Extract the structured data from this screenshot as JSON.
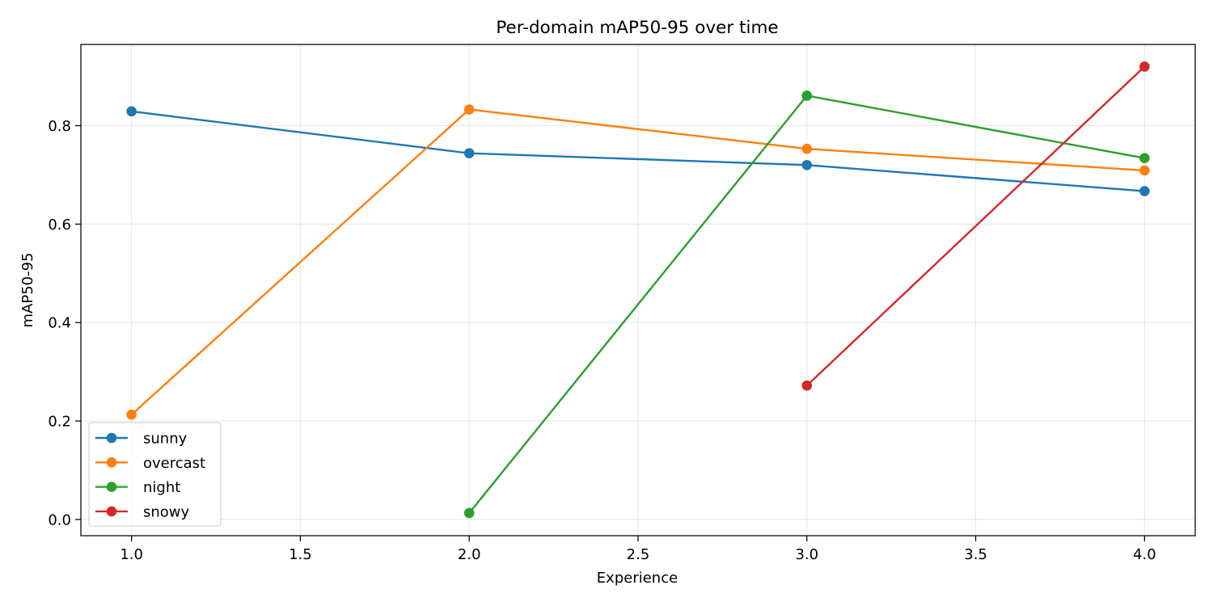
{
  "chart_data": {
    "type": "line",
    "title": "Per-domain mAP50-95 over time",
    "xlabel": "Experience",
    "ylabel": "mAP50-95",
    "xlim": [
      0.85,
      4.15
    ],
    "ylim": [
      -0.033,
      0.965
    ],
    "xticks": [
      "1.0",
      "1.5",
      "2.0",
      "2.5",
      "3.0",
      "3.5",
      "4.0"
    ],
    "yticks": [
      "0.0",
      "0.2",
      "0.4",
      "0.6",
      "0.8"
    ],
    "grid": true,
    "legend_position": "lower-left",
    "series": [
      {
        "name": "sunny",
        "color": "#1f77b4",
        "x": [
          1,
          2,
          3,
          4
        ],
        "y": [
          0.829,
          0.744,
          0.72,
          0.667
        ]
      },
      {
        "name": "overcast",
        "color": "#ff7f0e",
        "x": [
          1,
          2,
          3,
          4
        ],
        "y": [
          0.213,
          0.833,
          0.753,
          0.709
        ]
      },
      {
        "name": "night",
        "color": "#2ca02c",
        "x": [
          2,
          3,
          4
        ],
        "y": [
          0.013,
          0.861,
          0.734
        ]
      },
      {
        "name": "snowy",
        "color": "#d62728",
        "x": [
          3,
          4
        ],
        "y": [
          0.272,
          0.92
        ]
      }
    ]
  }
}
